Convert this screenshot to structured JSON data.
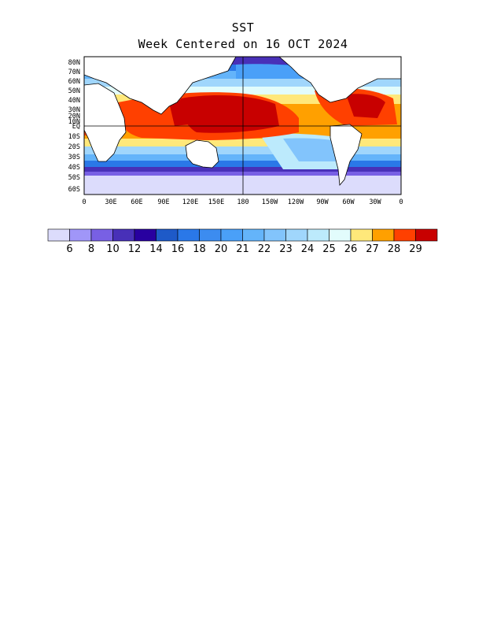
{
  "title": "SST",
  "subtitle": "Week Centered on 16 OCT 2024",
  "lat_labels": [
    "80N",
    "70N",
    "60N",
    "50N",
    "40N",
    "30N",
    "20N",
    "10N",
    "EQ",
    "10S",
    "20S",
    "30S",
    "40S",
    "50S",
    "60S"
  ],
  "lon_labels": [
    "0",
    "30E",
    "60E",
    "90E",
    "120E",
    "150E",
    "180",
    "150W",
    "120W",
    "90W",
    "60W",
    "30W",
    "0"
  ],
  "colorbar": {
    "colors": [
      "#dcdcfc",
      "#a096f8",
      "#7860e4",
      "#4830b8",
      "#2800a0",
      "#1e5ac8",
      "#2a78e8",
      "#3c8cf0",
      "#4aa0f8",
      "#64b4fa",
      "#82c4fc",
      "#a0d6fc",
      "#bceafc",
      "#e2fcfc",
      "#ffe87a",
      "#ffa000",
      "#ff4000",
      "#c80000"
    ],
    "labels": [
      "6",
      "8",
      "10",
      "12",
      "14",
      "16",
      "18",
      "20",
      "21",
      "22",
      "23",
      "24",
      "25",
      "26",
      "27",
      "28",
      "29"
    ]
  }
}
